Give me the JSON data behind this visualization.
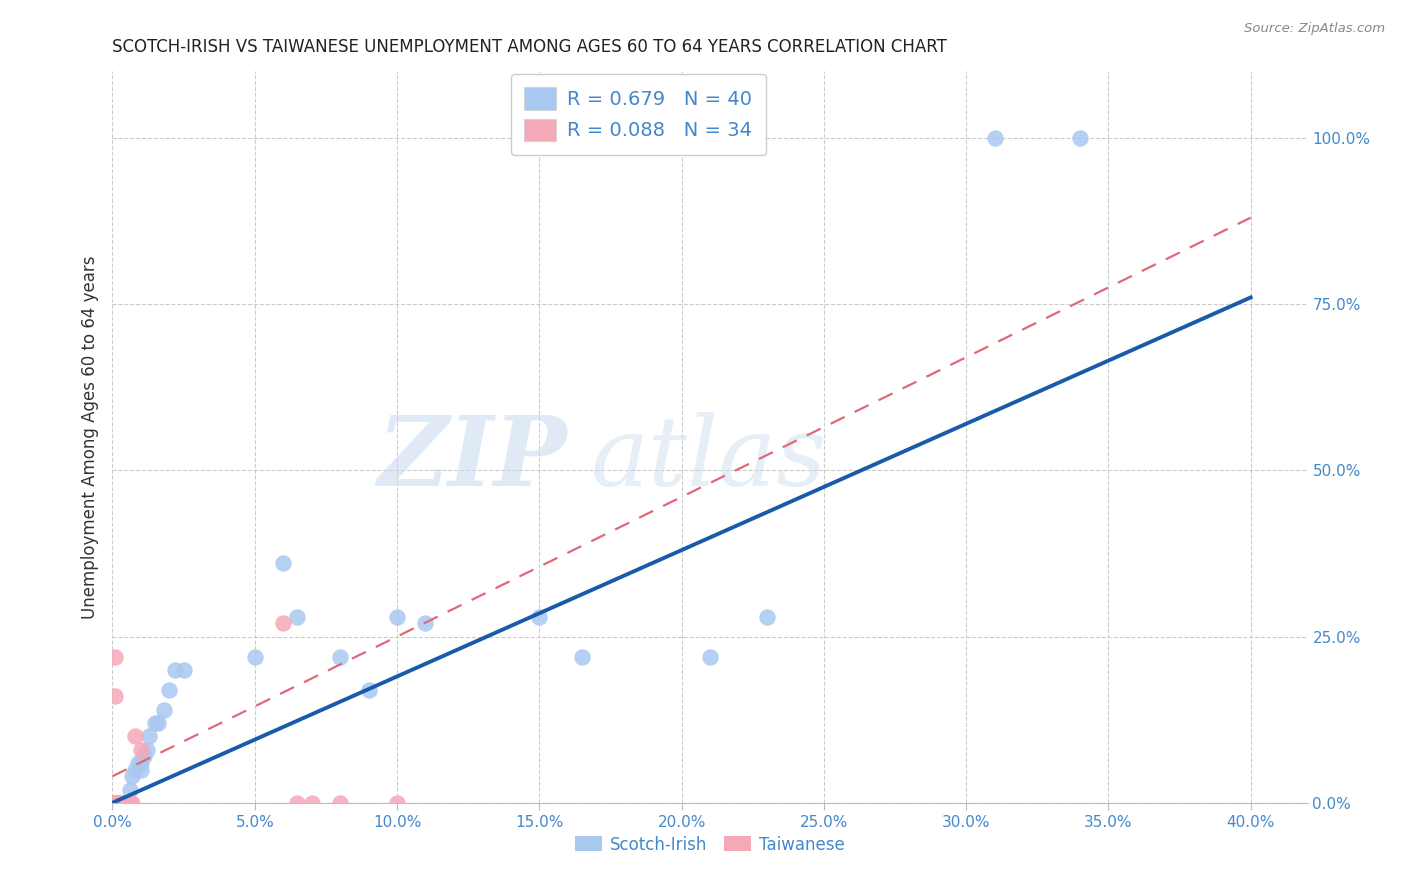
{
  "title": "SCOTCH-IRISH VS TAIWANESE UNEMPLOYMENT AMONG AGES 60 TO 64 YEARS CORRELATION CHART",
  "source": "Source: ZipAtlas.com",
  "ylabel": "Unemployment Among Ages 60 to 64 years",
  "xlim": [
    0.0,
    0.42
  ],
  "ylim": [
    0.0,
    1.1
  ],
  "xticks": [
    0.0,
    0.05,
    0.1,
    0.15,
    0.2,
    0.25,
    0.3,
    0.35,
    0.4
  ],
  "yticks_right": [
    0.0,
    0.25,
    0.5,
    0.75,
    1.0
  ],
  "ytick_labels_right": [
    "0.0%",
    "25.0%",
    "50.0%",
    "75.0%",
    "100.0%"
  ],
  "xtick_labels": [
    "0.0%",
    "5.0%",
    "10.0%",
    "15.0%",
    "20.0%",
    "25.0%",
    "30.0%",
    "35.0%",
    "40.0%"
  ],
  "scotch_irish_R": 0.679,
  "scotch_irish_N": 40,
  "taiwanese_R": 0.088,
  "taiwanese_N": 34,
  "scotch_irish_color": "#a8c8f0",
  "taiwanese_color": "#f5a8b8",
  "scotch_irish_line_color": "#1a5aaa",
  "taiwanese_line_color": "#e06878",
  "legend_label_scotch": "Scotch-Irish",
  "legend_label_taiwanese": "Taiwanese",
  "scotch_irish_x": [
    0.001,
    0.001,
    0.001,
    0.002,
    0.002,
    0.002,
    0.003,
    0.003,
    0.004,
    0.004,
    0.005,
    0.005,
    0.006,
    0.007,
    0.008,
    0.009,
    0.01,
    0.01,
    0.011,
    0.012,
    0.013,
    0.015,
    0.016,
    0.018,
    0.02,
    0.022,
    0.025,
    0.05,
    0.06,
    0.065,
    0.08,
    0.09,
    0.1,
    0.11,
    0.15,
    0.165,
    0.21,
    0.23,
    0.31,
    0.34
  ],
  "scotch_irish_y": [
    0.0,
    0.0,
    0.0,
    0.0,
    0.0,
    0.0,
    0.0,
    0.0,
    0.0,
    0.0,
    0.0,
    0.0,
    0.02,
    0.04,
    0.05,
    0.06,
    0.05,
    0.06,
    0.07,
    0.08,
    0.1,
    0.12,
    0.12,
    0.14,
    0.17,
    0.2,
    0.2,
    0.22,
    0.36,
    0.28,
    0.22,
    0.17,
    0.28,
    0.27,
    0.28,
    0.22,
    0.22,
    0.28,
    1.0,
    1.0
  ],
  "taiwanese_x": [
    0.001,
    0.001,
    0.001,
    0.001,
    0.001,
    0.001,
    0.001,
    0.001,
    0.001,
    0.001,
    0.001,
    0.001,
    0.001,
    0.001,
    0.001,
    0.001,
    0.001,
    0.001,
    0.001,
    0.001,
    0.002,
    0.002,
    0.003,
    0.004,
    0.005,
    0.006,
    0.007,
    0.008,
    0.01,
    0.06,
    0.065,
    0.07,
    0.08,
    0.1
  ],
  "taiwanese_y": [
    0.0,
    0.0,
    0.0,
    0.0,
    0.0,
    0.0,
    0.0,
    0.0,
    0.0,
    0.0,
    0.0,
    0.0,
    0.0,
    0.0,
    0.0,
    0.0,
    0.22,
    0.16,
    0.0,
    0.0,
    0.0,
    0.0,
    0.0,
    0.0,
    0.0,
    0.0,
    0.0,
    0.1,
    0.08,
    0.27,
    0.0,
    0.0,
    0.0,
    0.0
  ],
  "scotch_line_x0": 0.0,
  "scotch_line_y0": 0.0,
  "scotch_line_x1": 0.4,
  "scotch_line_y1": 0.76,
  "taiwan_line_x0": 0.0,
  "taiwan_line_y0": 0.04,
  "taiwan_line_x1": 0.4,
  "taiwan_line_y1": 0.88
}
